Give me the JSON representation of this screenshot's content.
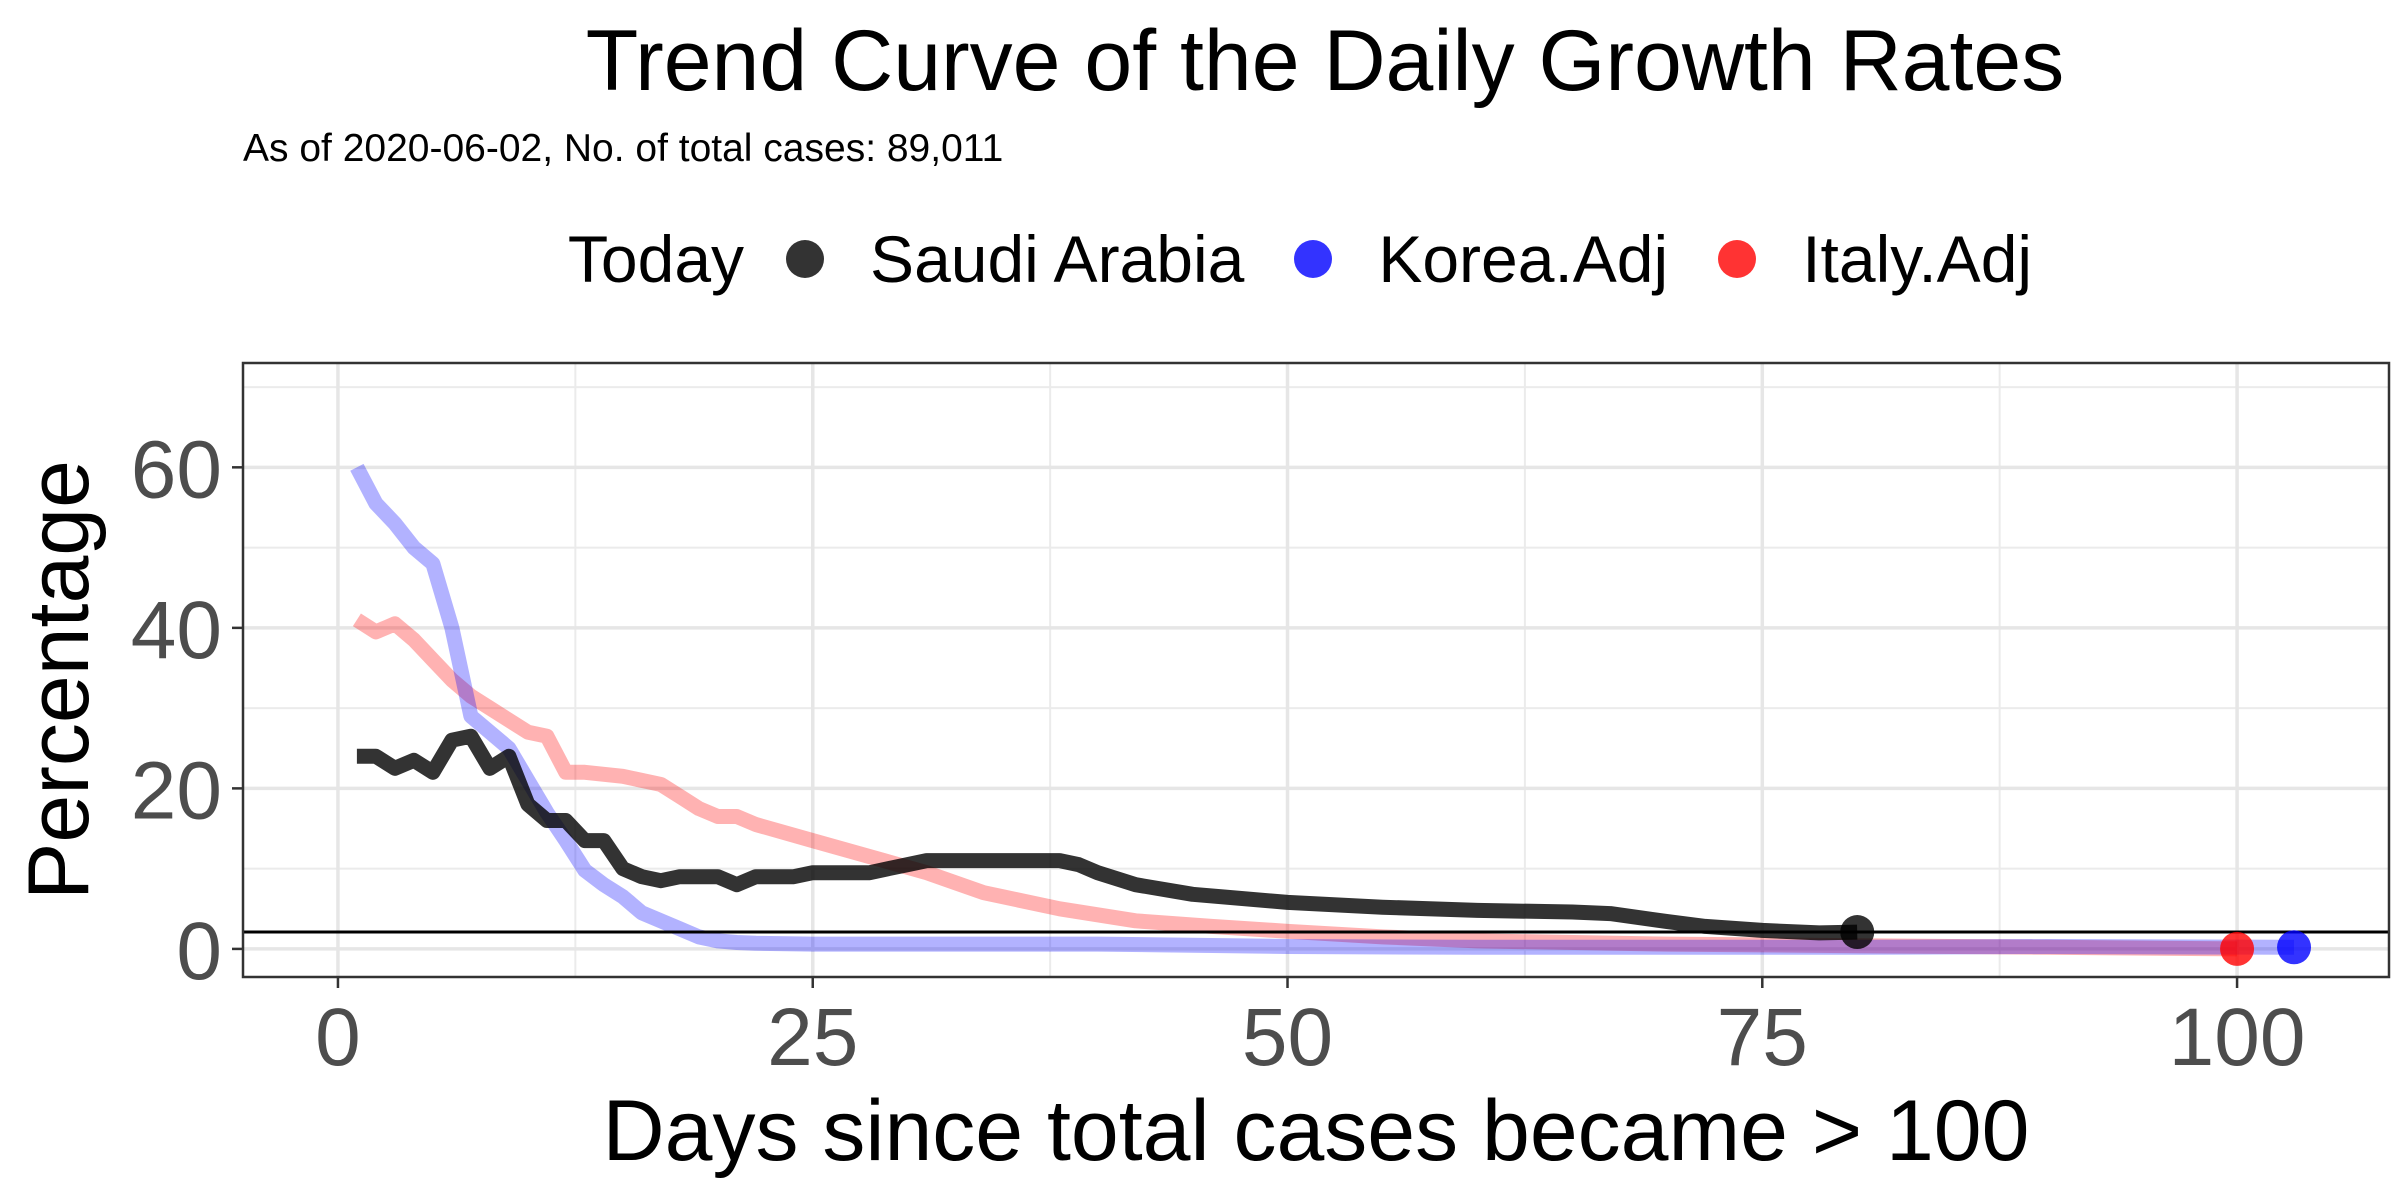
{
  "chart_data": {
    "type": "line",
    "title": "Trend Curve of the Daily Growth Rates",
    "subtitle": "As of 2020-06-02, No. of total cases: 89,011",
    "xlabel": "Days since total cases became > 100",
    "ylabel": "Percentage",
    "xlim": [
      -5,
      108
    ],
    "ylim": [
      -3.5,
      73
    ],
    "x_ticks": [
      0,
      25,
      50,
      75,
      100
    ],
    "y_ticks": [
      0,
      20,
      40,
      60
    ],
    "grid": true,
    "legend_position": "top",
    "legend_title": "Today",
    "reference_line_y": 2.1,
    "series": [
      {
        "name": "Saudi Arabia",
        "color": "#000000",
        "opacity": 0.8,
        "x": [
          1,
          2,
          3,
          4,
          5,
          6,
          7,
          8,
          9,
          10,
          11,
          12,
          13,
          14,
          15,
          16,
          17,
          18,
          19,
          20,
          21,
          22,
          23,
          24,
          25,
          26,
          27,
          28,
          29,
          30,
          31,
          32,
          33,
          34,
          35,
          36,
          37,
          38,
          39,
          40,
          42,
          45,
          50,
          55,
          60,
          65,
          67,
          70,
          72,
          75,
          78,
          80
        ],
        "y": [
          24,
          24,
          22.5,
          23.5,
          22,
          26,
          26.5,
          22.5,
          24,
          18,
          16,
          16,
          13.5,
          13.5,
          10,
          9,
          8.5,
          9,
          9,
          9,
          8,
          9,
          9,
          9,
          9.5,
          9.5,
          9.5,
          9.5,
          10,
          10.5,
          11,
          11,
          11,
          11,
          11,
          11,
          11,
          11,
          10.5,
          9.5,
          8,
          6.8,
          5.8,
          5.2,
          4.8,
          4.6,
          4.4,
          3.4,
          2.8,
          2.3,
          2,
          2.1
        ],
        "today": {
          "x": 80,
          "y": 2.1
        }
      },
      {
        "name": "Korea.Adj",
        "color": "#0000FF",
        "opacity": 0.3,
        "x": [
          1,
          2,
          3,
          4,
          5,
          6,
          7,
          8,
          9,
          10,
          11,
          12,
          13,
          14,
          15,
          16,
          17,
          18,
          19,
          20,
          21,
          22,
          25,
          30,
          40,
          50,
          60,
          70,
          80,
          90,
          103
        ],
        "y": [
          60,
          55.5,
          53,
          50,
          48,
          40,
          29,
          27,
          25,
          21,
          17,
          13.5,
          9.8,
          8,
          6.5,
          4.5,
          3.5,
          2.5,
          1.5,
          1,
          0.8,
          0.7,
          0.6,
          0.6,
          0.6,
          0.3,
          0.2,
          0.2,
          0.2,
          0.3,
          0.2
        ],
        "today": {
          "x": 103,
          "y": 0.2
        }
      },
      {
        "name": "Italy.Adj",
        "color": "#FF0000",
        "opacity": 0.3,
        "x": [
          1,
          2,
          3,
          4,
          5,
          6,
          7,
          8,
          9,
          10,
          11,
          12,
          13,
          15,
          17,
          18,
          19,
          20,
          21,
          22,
          25,
          28,
          31,
          34,
          38,
          42,
          46,
          50,
          55,
          60,
          70,
          80,
          90,
          100
        ],
        "y": [
          41,
          39.5,
          40.5,
          38.5,
          36,
          33.5,
          31.5,
          30,
          28.5,
          27,
          26.5,
          22,
          22,
          21.5,
          20.5,
          19,
          17.5,
          16.5,
          16.5,
          15.5,
          13.5,
          11.5,
          9.5,
          7,
          5,
          3.5,
          2.8,
          2.2,
          1.5,
          1,
          0.6,
          0.4,
          0.2,
          0
        ],
        "today": {
          "x": 100,
          "y": 0
        }
      }
    ]
  }
}
